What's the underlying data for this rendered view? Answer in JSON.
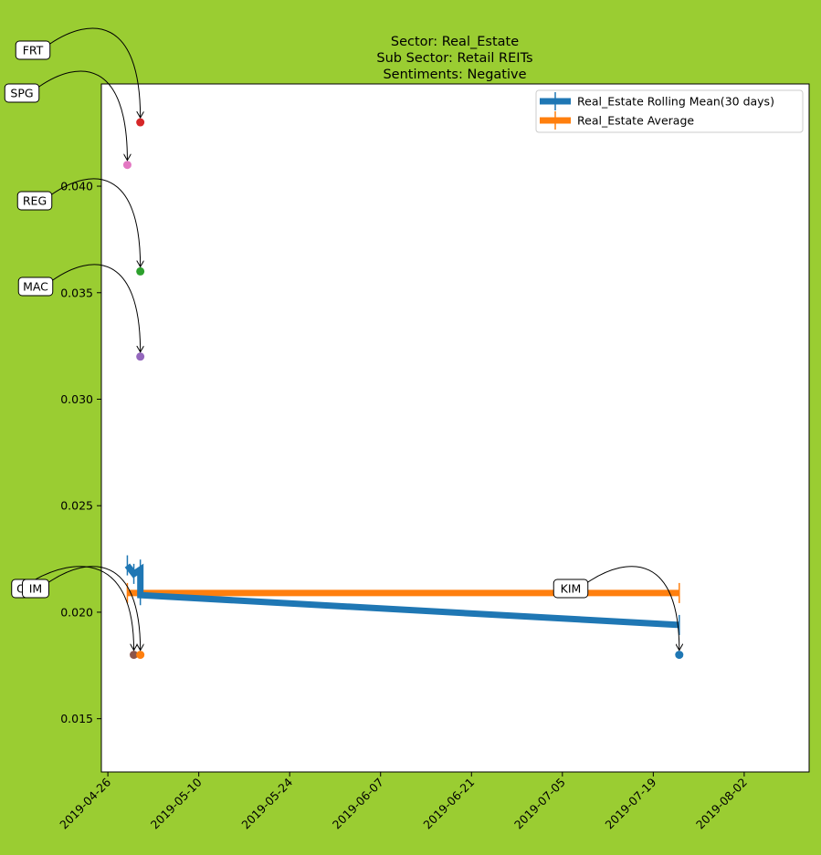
{
  "chart_data": {
    "type": "scatter",
    "title_lines": [
      "Sector:  Real_Estate",
      "Sub Sector:  Retail REITs",
      "Sentiments:  Negative"
    ],
    "xlabel": "",
    "ylabel": "",
    "x_ticks": [
      "2019-04-26",
      "2019-05-10",
      "2019-05-24",
      "2019-06-07",
      "2019-06-21",
      "2019-07-05",
      "2019-07-19",
      "2019-08-02"
    ],
    "y_ticks": [
      0.015,
      0.02,
      0.025,
      0.03,
      0.035,
      0.04
    ],
    "y_tick_labels": [
      "0.015",
      "0.020",
      "0.025",
      "0.030",
      "0.035",
      "0.040"
    ],
    "xlim": [
      "2019-04-25",
      "2019-08-12"
    ],
    "ylim": [
      0.0125,
      0.0448
    ],
    "grid": false,
    "legend_position": "top-right",
    "points": [
      {
        "label": "FRT",
        "date": "2019-05-01",
        "value": 0.043,
        "color": "#d62728",
        "show_label": true
      },
      {
        "label": "SPG",
        "date": "2019-04-29",
        "value": 0.041,
        "color": "#e377c2",
        "show_label": true
      },
      {
        "label": "REG",
        "date": "2019-05-01",
        "value": 0.036,
        "color": "#2ca02c",
        "show_label": true
      },
      {
        "label": "MAC",
        "date": "2019-05-01",
        "value": 0.032,
        "color": "#9467bd",
        "show_label": true
      },
      {
        "label": "O",
        "date": "2019-04-30",
        "value": 0.018,
        "color": "#8c564b",
        "show_label": true
      },
      {
        "label": "IM",
        "date": "2019-05-01",
        "value": 0.018,
        "color": "#ff7f0e",
        "show_label": true
      },
      {
        "label": "KIM",
        "date": "2019-07-23",
        "value": 0.018,
        "color": "#1f77b4",
        "show_label": true
      }
    ],
    "series": [
      {
        "name": "Real_Estate Rolling Mean(30 days)",
        "color": "#1f77b4",
        "x": [
          "2019-04-29",
          "2019-04-30",
          "2019-05-01",
          "2019-05-01",
          "2019-07-23"
        ],
        "y": [
          0.0222,
          0.0218,
          0.022,
          0.0208,
          0.0194
        ]
      },
      {
        "name": "Real_Estate Average",
        "color": "#ff7f0e",
        "x": [
          "2019-04-29",
          "2019-07-23"
        ],
        "y": [
          0.0209,
          0.0209
        ]
      }
    ]
  }
}
